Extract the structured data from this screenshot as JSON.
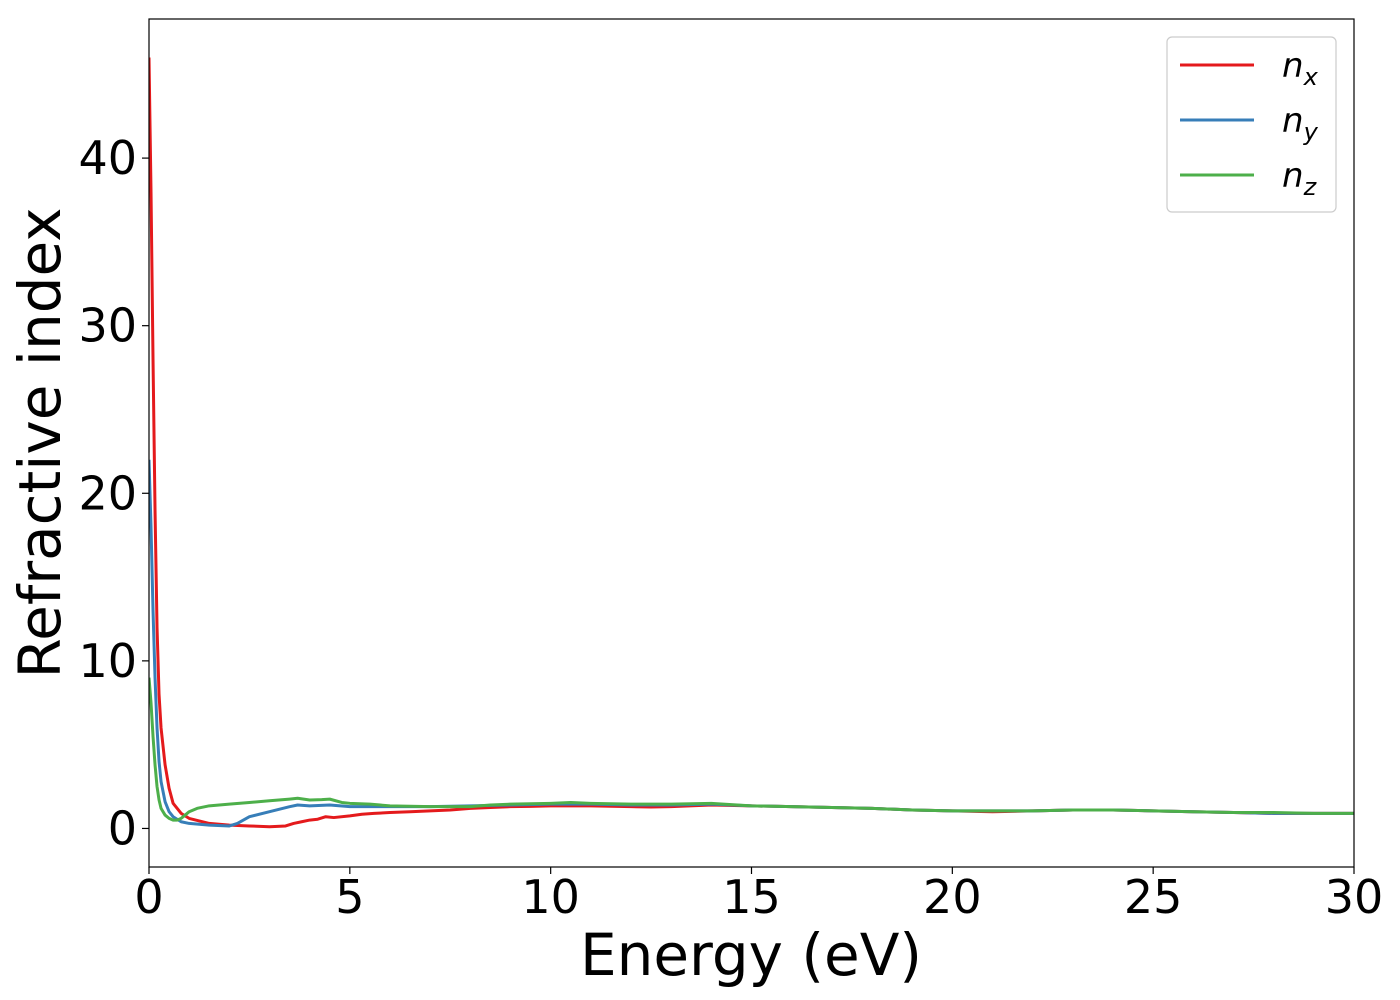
{
  "chart_data": {
    "type": "line",
    "xlabel": "Energy (eV)",
    "ylabel": "Refractive index",
    "xlim": [
      0,
      30
    ],
    "ylim": [
      -2.3,
      48.3
    ],
    "xticks": [
      0,
      5,
      10,
      15,
      20,
      25,
      30
    ],
    "yticks": [
      0,
      10,
      20,
      30,
      40
    ],
    "grid": false,
    "legend_position": "top-right",
    "series": [
      {
        "name": "n_x",
        "legend_base": "n",
        "legend_sub": "x",
        "color": "#e41a1c",
        "x": [
          0,
          0.05,
          0.1,
          0.15,
          0.2,
          0.25,
          0.3,
          0.4,
          0.5,
          0.6,
          0.8,
          1.0,
          1.5,
          2.0,
          2.5,
          3.0,
          3.4,
          3.6,
          3.8,
          4.0,
          4.2,
          4.4,
          4.6,
          5.0,
          5.3,
          5.6,
          6.0,
          6.5,
          7.0,
          7.5,
          8.0,
          8.5,
          9.0,
          9.5,
          10.0,
          11.0,
          12.0,
          12.5,
          13.0,
          14.0,
          15.0,
          16.0,
          17.0,
          18.0,
          19.0,
          20.0,
          21.0,
          22.0,
          23.0,
          24.0,
          25.0,
          26.0,
          27.0,
          28.0,
          29.0,
          30.0
        ],
        "y": [
          46.0,
          38.0,
          28.0,
          19.0,
          12.0,
          8.0,
          6.0,
          3.8,
          2.4,
          1.5,
          0.9,
          0.6,
          0.3,
          0.2,
          0.15,
          0.1,
          0.15,
          0.3,
          0.4,
          0.5,
          0.55,
          0.7,
          0.65,
          0.75,
          0.85,
          0.9,
          0.95,
          1.0,
          1.05,
          1.1,
          1.2,
          1.25,
          1.3,
          1.32,
          1.35,
          1.35,
          1.3,
          1.28,
          1.3,
          1.4,
          1.35,
          1.3,
          1.25,
          1.2,
          1.1,
          1.05,
          1.0,
          1.05,
          1.1,
          1.1,
          1.05,
          1.0,
          0.95,
          0.9,
          0.9,
          0.9
        ]
      },
      {
        "name": "n_y",
        "legend_base": "n",
        "legend_sub": "y",
        "color": "#377eb8",
        "x": [
          0,
          0.05,
          0.1,
          0.15,
          0.2,
          0.25,
          0.3,
          0.4,
          0.5,
          0.6,
          0.8,
          1.0,
          1.5,
          2.0,
          2.2,
          2.5,
          3.0,
          3.5,
          3.7,
          4.0,
          4.5,
          5.0,
          6.0,
          7.0,
          8.0,
          9.0,
          10.0,
          11.0,
          12.0,
          13.0,
          14.0,
          15.0,
          16.0,
          17.0,
          18.0,
          19.0,
          20.0,
          21.0,
          22.0,
          23.0,
          24.0,
          25.0,
          26.0,
          27.0,
          28.0,
          29.0,
          30.0
        ],
        "y": [
          22.0,
          18.0,
          13.0,
          9.0,
          6.0,
          4.0,
          2.8,
          1.6,
          1.0,
          0.7,
          0.4,
          0.3,
          0.2,
          0.15,
          0.3,
          0.7,
          1.0,
          1.3,
          1.4,
          1.35,
          1.4,
          1.3,
          1.3,
          1.3,
          1.35,
          1.4,
          1.45,
          1.45,
          1.4,
          1.4,
          1.45,
          1.35,
          1.3,
          1.25,
          1.2,
          1.1,
          1.05,
          1.05,
          1.05,
          1.1,
          1.1,
          1.05,
          1.0,
          0.95,
          0.9,
          0.9,
          0.9
        ]
      },
      {
        "name": "n_z",
        "legend_base": "n",
        "legend_sub": "z",
        "color": "#4daf4a",
        "x": [
          0,
          0.05,
          0.1,
          0.15,
          0.2,
          0.25,
          0.3,
          0.4,
          0.5,
          0.6,
          0.7,
          0.8,
          0.9,
          1.0,
          1.2,
          1.5,
          2.0,
          2.5,
          3.0,
          3.5,
          3.7,
          4.0,
          4.3,
          4.5,
          4.8,
          5.0,
          5.5,
          6.0,
          7.0,
          8.0,
          8.5,
          9.0,
          10.0,
          10.5,
          11.0,
          12.0,
          13.0,
          14.0,
          15.0,
          16.0,
          17.0,
          18.0,
          19.0,
          20.0,
          21.0,
          22.0,
          23.0,
          24.0,
          25.0,
          26.0,
          27.0,
          28.0,
          29.0,
          30.0
        ],
        "y": [
          9.0,
          7.5,
          5.5,
          3.8,
          2.5,
          1.7,
          1.2,
          0.8,
          0.6,
          0.5,
          0.5,
          0.6,
          0.8,
          1.0,
          1.2,
          1.35,
          1.45,
          1.55,
          1.65,
          1.75,
          1.8,
          1.7,
          1.72,
          1.75,
          1.55,
          1.5,
          1.45,
          1.35,
          1.3,
          1.3,
          1.4,
          1.45,
          1.5,
          1.55,
          1.5,
          1.45,
          1.45,
          1.5,
          1.35,
          1.3,
          1.25,
          1.2,
          1.1,
          1.05,
          1.05,
          1.05,
          1.1,
          1.1,
          1.05,
          1.0,
          0.95,
          0.95,
          0.9,
          0.9
        ]
      }
    ]
  }
}
